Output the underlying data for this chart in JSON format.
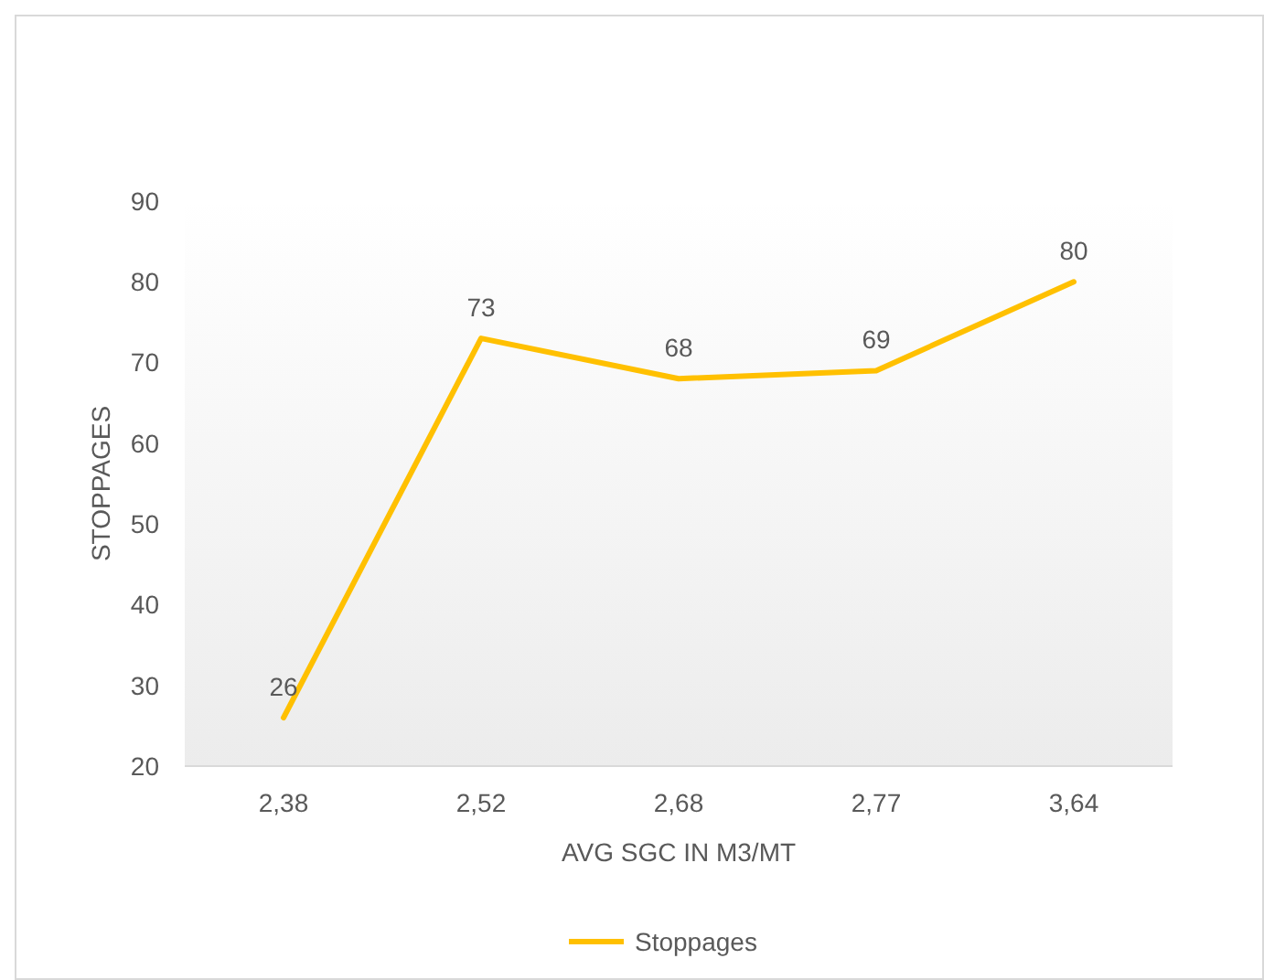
{
  "chart_data": {
    "type": "line",
    "xlabel": "AVG SGC IN M3/MT",
    "ylabel": "STOPPAGES",
    "categories": [
      "2,38",
      "2,52",
      "2,68",
      "2,77",
      "3,64"
    ],
    "series": [
      {
        "name": "Stoppages",
        "color": "#ffc000",
        "values": [
          26,
          73,
          68,
          69,
          80
        ]
      }
    ],
    "ylim": [
      20,
      90
    ],
    "yticks": [
      20,
      30,
      40,
      50,
      60,
      70,
      80,
      90
    ],
    "grid": false,
    "legend": "bottom",
    "data_labels": true,
    "marker": "none",
    "line_style": "solid"
  }
}
